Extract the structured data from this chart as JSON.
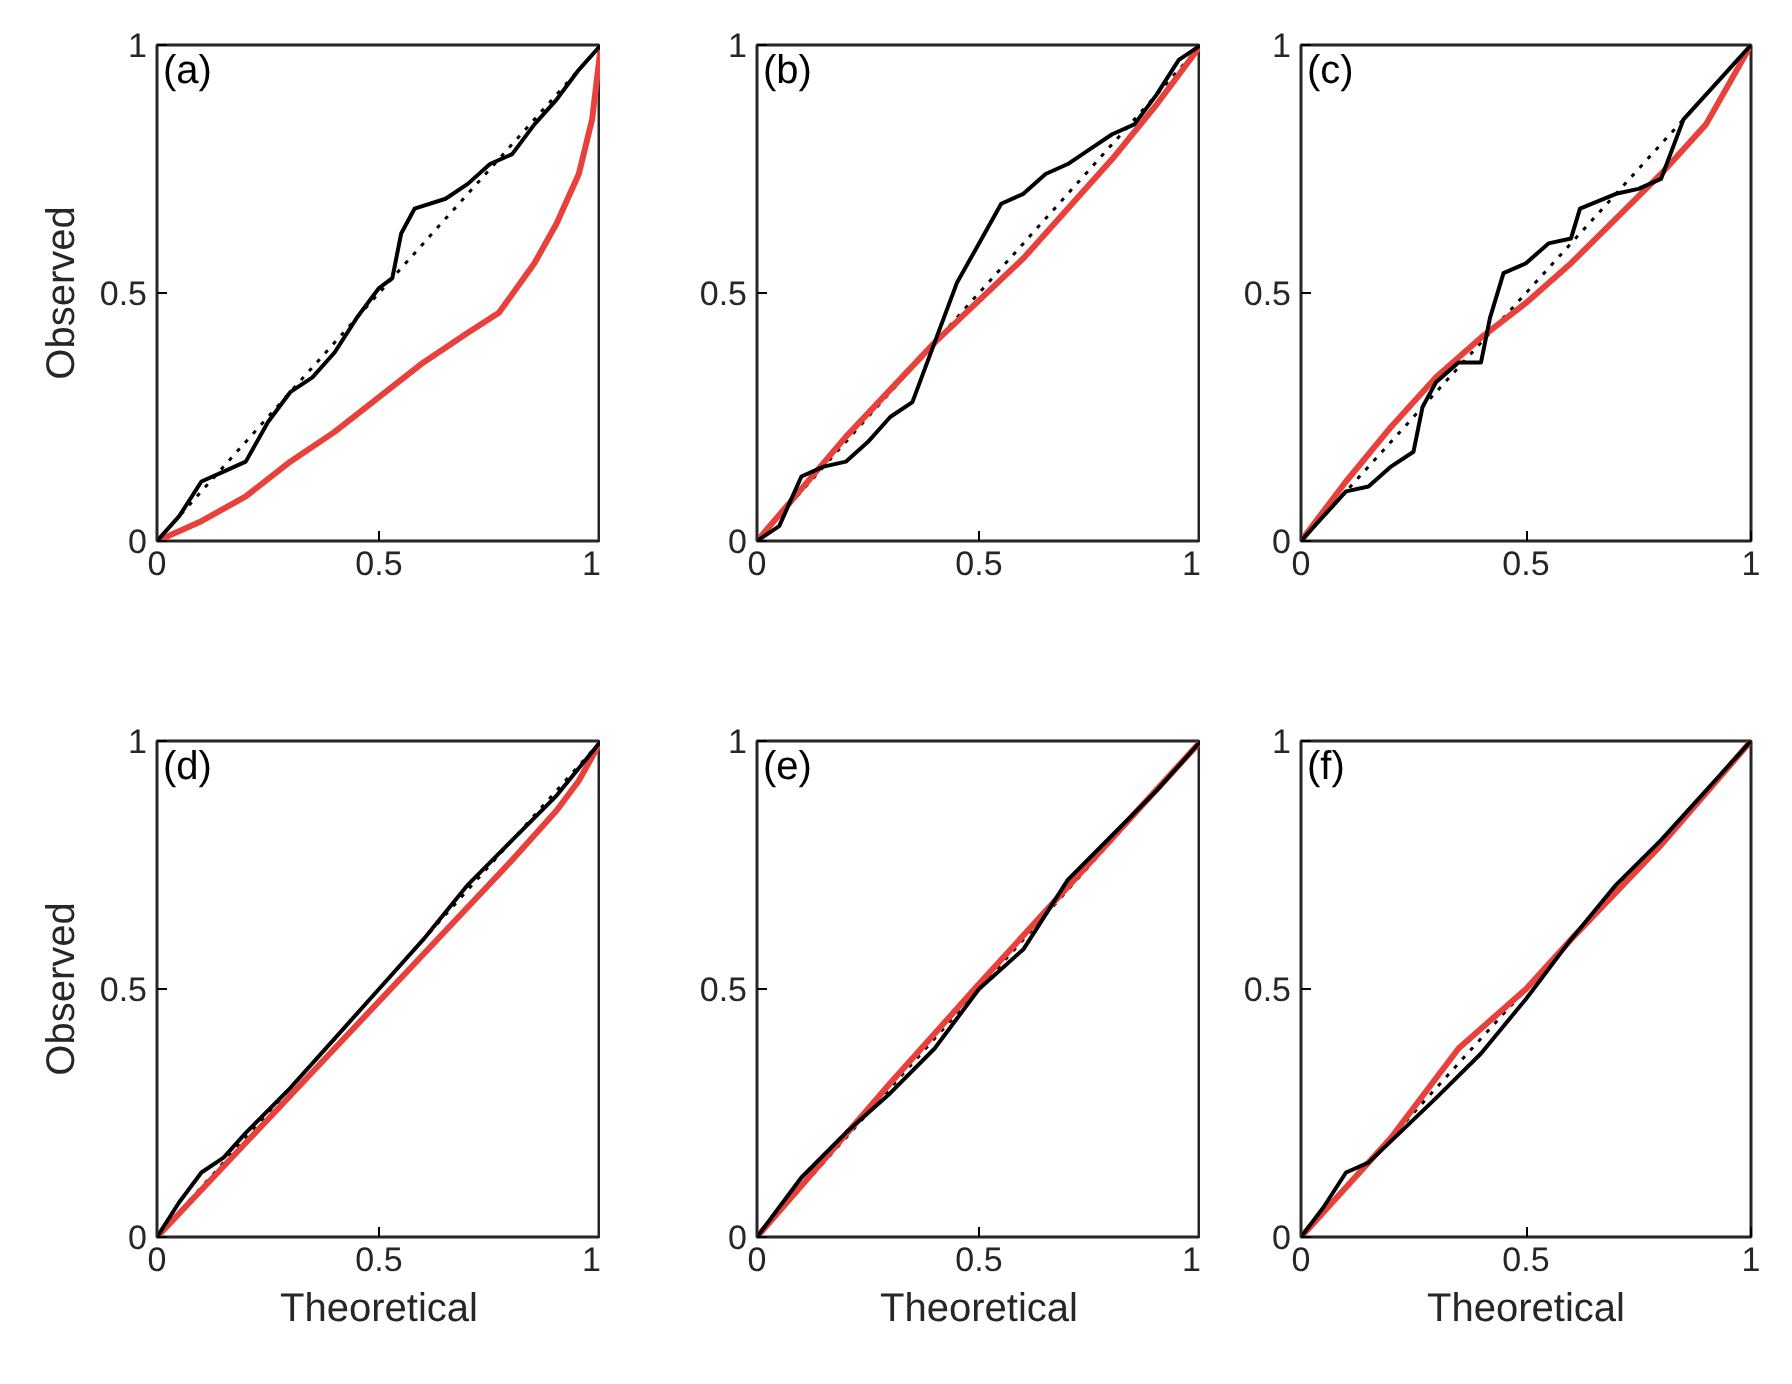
{
  "chart_data": [
    {
      "type": "line",
      "annotations": [
        "(a)"
      ],
      "ylabel": "Observed",
      "xlim": [
        0,
        1
      ],
      "ylim": [
        0,
        1
      ],
      "xticks": [
        0,
        0.5,
        1
      ],
      "yticks": [
        0,
        0.5,
        1
      ],
      "grid": false,
      "series": [
        {
          "color": "#000000",
          "line_style": "dotted",
          "x": [
            0,
            1
          ],
          "values": [
            0,
            1
          ]
        },
        {
          "color": "#e8413c",
          "line_style": "solid",
          "x": [
            0,
            0.1,
            0.2,
            0.3,
            0.4,
            0.5,
            0.6,
            0.7,
            0.77,
            0.85,
            0.9,
            0.95,
            0.98,
            1
          ],
          "values": [
            0,
            0.04,
            0.09,
            0.16,
            0.22,
            0.29,
            0.36,
            0.42,
            0.46,
            0.56,
            0.64,
            0.74,
            0.85,
            1
          ]
        },
        {
          "color": "#000000",
          "line_style": "solid",
          "x": [
            0,
            0.05,
            0.1,
            0.15,
            0.2,
            0.25,
            0.3,
            0.35,
            0.4,
            0.45,
            0.5,
            0.53,
            0.55,
            0.58,
            0.65,
            0.7,
            0.75,
            0.8,
            0.85,
            0.9,
            0.95,
            1
          ],
          "values": [
            0,
            0.05,
            0.12,
            0.14,
            0.16,
            0.24,
            0.3,
            0.33,
            0.38,
            0.45,
            0.51,
            0.53,
            0.62,
            0.67,
            0.69,
            0.72,
            0.76,
            0.78,
            0.84,
            0.89,
            0.95,
            1
          ]
        }
      ]
    },
    {
      "type": "line",
      "annotations": [
        "(b)"
      ],
      "xlim": [
        0,
        1
      ],
      "ylim": [
        0,
        1
      ],
      "xticks": [
        0,
        0.5,
        1
      ],
      "yticks": [
        0,
        0.5,
        1
      ],
      "grid": false,
      "series": [
        {
          "color": "#000000",
          "line_style": "dotted",
          "x": [
            0,
            1
          ],
          "values": [
            0,
            1
          ]
        },
        {
          "color": "#e8413c",
          "line_style": "solid",
          "x": [
            0,
            0.2,
            0.4,
            0.6,
            0.8,
            0.9,
            1
          ],
          "values": [
            0,
            0.21,
            0.4,
            0.57,
            0.77,
            0.88,
            1
          ]
        },
        {
          "color": "#000000",
          "line_style": "solid",
          "x": [
            0,
            0.05,
            0.1,
            0.15,
            0.2,
            0.25,
            0.3,
            0.35,
            0.4,
            0.45,
            0.5,
            0.55,
            0.6,
            0.65,
            0.7,
            0.75,
            0.8,
            0.85,
            0.9,
            0.95,
            1
          ],
          "values": [
            0,
            0.03,
            0.13,
            0.15,
            0.16,
            0.2,
            0.25,
            0.28,
            0.4,
            0.52,
            0.6,
            0.68,
            0.7,
            0.74,
            0.76,
            0.79,
            0.82,
            0.84,
            0.9,
            0.97,
            1
          ]
        }
      ]
    },
    {
      "type": "line",
      "annotations": [
        "(c)"
      ],
      "xlim": [
        0,
        1
      ],
      "ylim": [
        0,
        1
      ],
      "xticks": [
        0,
        0.5,
        1
      ],
      "yticks": [
        0,
        0.5,
        1
      ],
      "grid": false,
      "series": [
        {
          "color": "#000000",
          "line_style": "dotted",
          "x": [
            0,
            1
          ],
          "values": [
            0,
            1
          ]
        },
        {
          "color": "#e8413c",
          "line_style": "solid",
          "x": [
            0,
            0.1,
            0.2,
            0.3,
            0.4,
            0.5,
            0.6,
            0.7,
            0.8,
            0.9,
            1
          ],
          "values": [
            0,
            0.12,
            0.23,
            0.33,
            0.41,
            0.48,
            0.56,
            0.65,
            0.74,
            0.84,
            1
          ]
        },
        {
          "color": "#000000",
          "line_style": "solid",
          "x": [
            0,
            0.05,
            0.1,
            0.15,
            0.2,
            0.25,
            0.27,
            0.3,
            0.35,
            0.4,
            0.42,
            0.45,
            0.5,
            0.55,
            0.6,
            0.62,
            0.7,
            0.75,
            0.8,
            0.85,
            0.9,
            0.95,
            1
          ],
          "values": [
            0,
            0.05,
            0.1,
            0.11,
            0.15,
            0.18,
            0.27,
            0.32,
            0.36,
            0.36,
            0.45,
            0.54,
            0.56,
            0.6,
            0.61,
            0.67,
            0.7,
            0.71,
            0.73,
            0.85,
            0.9,
            0.95,
            1
          ]
        }
      ]
    },
    {
      "type": "line",
      "annotations": [
        "(d)"
      ],
      "xlabel": "Theoretical",
      "ylabel": "Observed",
      "xlim": [
        0,
        1
      ],
      "ylim": [
        0,
        1
      ],
      "xticks": [
        0,
        0.5,
        1
      ],
      "yticks": [
        0,
        0.5,
        1
      ],
      "grid": false,
      "series": [
        {
          "color": "#000000",
          "line_style": "dotted",
          "x": [
            0,
            1
          ],
          "values": [
            0,
            1
          ]
        },
        {
          "color": "#e8413c",
          "line_style": "solid",
          "x": [
            0,
            0.2,
            0.4,
            0.6,
            0.8,
            0.9,
            0.95,
            1
          ],
          "values": [
            0,
            0.19,
            0.38,
            0.57,
            0.76,
            0.86,
            0.92,
            1
          ]
        },
        {
          "color": "#000000",
          "line_style": "solid",
          "x": [
            0,
            0.05,
            0.1,
            0.15,
            0.2,
            0.3,
            0.4,
            0.5,
            0.6,
            0.7,
            0.8,
            0.9,
            1
          ],
          "values": [
            0,
            0.07,
            0.13,
            0.16,
            0.21,
            0.3,
            0.4,
            0.5,
            0.6,
            0.71,
            0.8,
            0.89,
            1
          ]
        }
      ]
    },
    {
      "type": "line",
      "annotations": [
        "(e)"
      ],
      "xlabel": "Theoretical",
      "xlim": [
        0,
        1
      ],
      "ylim": [
        0,
        1
      ],
      "xticks": [
        0,
        0.5,
        1
      ],
      "yticks": [
        0,
        0.5,
        1
      ],
      "grid": false,
      "series": [
        {
          "color": "#000000",
          "line_style": "dotted",
          "x": [
            0,
            1
          ],
          "values": [
            0,
            1
          ]
        },
        {
          "color": "#e8413c",
          "line_style": "solid",
          "x": [
            0,
            0.3,
            0.5,
            1
          ],
          "values": [
            0,
            0.31,
            0.51,
            1
          ]
        },
        {
          "color": "#000000",
          "line_style": "solid",
          "x": [
            0,
            0.05,
            0.1,
            0.2,
            0.3,
            0.4,
            0.5,
            0.6,
            0.7,
            0.8,
            0.9,
            1
          ],
          "values": [
            0,
            0.06,
            0.12,
            0.21,
            0.29,
            0.38,
            0.5,
            0.58,
            0.72,
            0.81,
            0.9,
            1
          ]
        }
      ]
    },
    {
      "type": "line",
      "annotations": [
        "(f)"
      ],
      "xlabel": "Theoretical",
      "xlim": [
        0,
        1
      ],
      "ylim": [
        0,
        1
      ],
      "xticks": [
        0,
        0.5,
        1
      ],
      "yticks": [
        0,
        0.5,
        1
      ],
      "grid": false,
      "series": [
        {
          "color": "#000000",
          "line_style": "dotted",
          "x": [
            0,
            1
          ],
          "values": [
            0,
            1
          ]
        },
        {
          "color": "#e8413c",
          "line_style": "solid",
          "x": [
            0,
            0.2,
            0.35,
            0.5,
            0.6,
            0.8,
            1
          ],
          "values": [
            0,
            0.2,
            0.38,
            0.5,
            0.6,
            0.79,
            1
          ]
        },
        {
          "color": "#000000",
          "line_style": "solid",
          "x": [
            0,
            0.05,
            0.1,
            0.15,
            0.3,
            0.4,
            0.5,
            0.6,
            0.7,
            0.8,
            0.9,
            1
          ],
          "values": [
            0,
            0.06,
            0.13,
            0.15,
            0.28,
            0.37,
            0.48,
            0.6,
            0.71,
            0.8,
            0.9,
            1
          ]
        }
      ]
    }
  ]
}
